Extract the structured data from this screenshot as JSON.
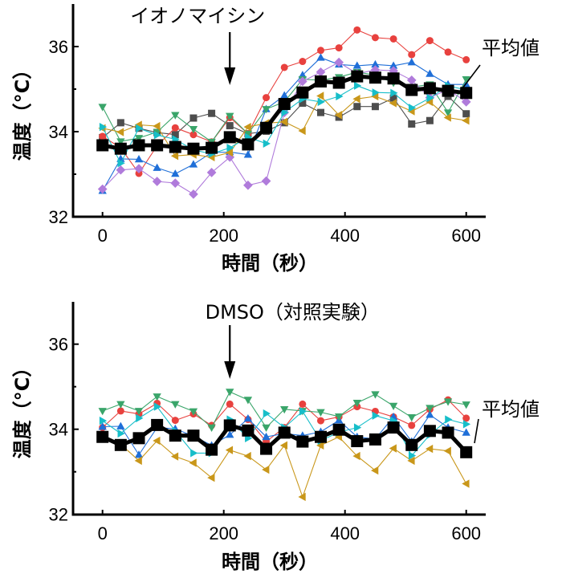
{
  "chart_data": [
    {
      "type": "line",
      "id": "ionomycin",
      "title": "",
      "annotation": "イオノマイシン",
      "annotation_at_x": 210,
      "average_label": "平均値",
      "xlabel": "時間（秒）",
      "ylabel": "温度（°C）",
      "xlim": [
        -30,
        640
      ],
      "ylim": [
        32,
        37
      ],
      "xticks": [
        0,
        200,
        400,
        600
      ],
      "xtick_labels": [
        "0",
        "200",
        "400",
        "600"
      ],
      "yticks": [
        32,
        34,
        36
      ],
      "ytick_labels": [
        "32",
        "34",
        "36"
      ],
      "yminor_ticks": [
        33,
        35
      ],
      "grid": false,
      "x": [
        0,
        30,
        60,
        90,
        120,
        150,
        180,
        210,
        240,
        270,
        300,
        330,
        360,
        390,
        420,
        450,
        480,
        510,
        540,
        570,
        600
      ],
      "series": [
        {
          "name": "gray",
          "marker": "square",
          "color": "#4D4D4D",
          "values": [
            33.86,
            34.21,
            34.08,
            33.98,
            33.93,
            34.32,
            34.43,
            34.14,
            33.95,
            34.01,
            34.21,
            34.67,
            34.45,
            34.34,
            34.59,
            34.59,
            34.79,
            34.18,
            34.26,
            34.83,
            34.42
          ]
        },
        {
          "name": "red",
          "marker": "circle",
          "color": "#E8413E",
          "values": [
            33.89,
            33.62,
            33.02,
            33.67,
            34.09,
            33.93,
            33.76,
            34.33,
            33.95,
            34.8,
            35.51,
            35.65,
            35.91,
            35.97,
            36.39,
            36.21,
            36.18,
            35.81,
            36.14,
            35.87,
            35.69
          ]
        },
        {
          "name": "blue",
          "marker": "triangle-up",
          "color": "#1F6FD8",
          "values": [
            32.61,
            33.36,
            33.35,
            33.15,
            33.01,
            33.23,
            33.51,
            33.52,
            33.46,
            34.53,
            34.85,
            35.33,
            35.74,
            35.58,
            35.55,
            35.58,
            35.55,
            35.63,
            35.36,
            35.11,
            35.11
          ]
        },
        {
          "name": "green",
          "marker": "triangle-down",
          "color": "#3AA56A",
          "values": [
            34.58,
            33.77,
            33.85,
            33.99,
            34.39,
            34.06,
            33.76,
            34.37,
            33.95,
            34.53,
            34.7,
            35.23,
            35.21,
            35.28,
            35.4,
            35.33,
            35.15,
            35.05,
            35.11,
            34.45,
            35.23
          ]
        },
        {
          "name": "purple",
          "marker": "diamond",
          "color": "#B07BDB",
          "values": [
            32.65,
            33.1,
            33.13,
            32.83,
            32.79,
            32.53,
            33.04,
            33.4,
            32.74,
            32.84,
            34.45,
            35.18,
            35.4,
            35.63,
            35.36,
            35.45,
            35.43,
            35.21,
            34.8,
            34.99,
            34.7
          ]
        },
        {
          "name": "gold",
          "marker": "triangle-left",
          "color": "#C9971A",
          "values": [
            34.08,
            33.99,
            34.16,
            34.13,
            33.43,
            33.46,
            33.4,
            33.51,
            34.11,
            34.2,
            34.23,
            34.02,
            34.84,
            34.39,
            34.77,
            34.83,
            34.67,
            34.48,
            34.7,
            34.33,
            34.26
          ]
        },
        {
          "name": "cyan",
          "marker": "triangle-right",
          "color": "#17BEC9",
          "values": [
            34.11,
            33.26,
            34.08,
            33.92,
            33.82,
            33.57,
            33.48,
            33.62,
            33.87,
            33.72,
            34.45,
            34.77,
            34.7,
            34.83,
            35.08,
            34.92,
            34.91,
            34.56,
            34.79,
            35.08,
            34.98
          ]
        },
        {
          "name": "average",
          "marker": "square",
          "color": "#000000",
          "bold": true,
          "values": [
            33.68,
            33.6,
            33.68,
            33.68,
            33.64,
            33.6,
            33.62,
            33.87,
            33.7,
            34.09,
            34.65,
            34.92,
            35.18,
            35.15,
            35.3,
            35.27,
            35.25,
            34.98,
            35.02,
            34.96,
            34.91
          ]
        }
      ]
    },
    {
      "type": "line",
      "id": "dmso",
      "title": "",
      "annotation": "DMSO（対照実験）",
      "annotation_at_x": 210,
      "average_label": "平均値",
      "xlabel": "時間（秒）",
      "ylabel": "温度（°C）",
      "xlim": [
        -30,
        640
      ],
      "ylim": [
        32,
        37
      ],
      "xticks": [
        0,
        200,
        400,
        600
      ],
      "xtick_labels": [
        "0",
        "200",
        "400",
        "600"
      ],
      "yticks": [
        32,
        34,
        36
      ],
      "ytick_labels": [
        "32",
        "34",
        "36"
      ],
      "yminor_ticks": [
        33,
        35
      ],
      "grid": false,
      "x": [
        0,
        30,
        60,
        90,
        120,
        150,
        180,
        210,
        240,
        270,
        300,
        330,
        360,
        390,
        420,
        450,
        480,
        510,
        540,
        570,
        600
      ],
      "series": [
        {
          "name": "red",
          "marker": "circle",
          "color": "#E8413E",
          "values": [
            34.04,
            34.43,
            34.36,
            34.61,
            34.21,
            34.36,
            34.09,
            34.59,
            34.23,
            33.71,
            34.04,
            34.59,
            34.2,
            34.29,
            34.53,
            34.42,
            34.29,
            34.09,
            34.47,
            34.69,
            34.26
          ]
        },
        {
          "name": "blue",
          "marker": "triangle-up",
          "color": "#1F6FD8",
          "values": [
            34.06,
            34.07,
            33.4,
            34.04,
            34.01,
            33.84,
            33.62,
            33.87,
            34.25,
            33.82,
            33.9,
            33.85,
            33.94,
            34.21,
            33.82,
            33.77,
            34.29,
            33.71,
            34.34,
            34.04,
            33.92
          ]
        },
        {
          "name": "green",
          "marker": "triangle-down",
          "color": "#3AA56A",
          "values": [
            34.43,
            34.59,
            34.43,
            34.77,
            34.59,
            34.42,
            34.04,
            34.88,
            34.69,
            34.04,
            34.47,
            34.43,
            34.4,
            34.3,
            34.62,
            34.82,
            34.55,
            34.28,
            34.5,
            34.65,
            34.58
          ]
        },
        {
          "name": "gold",
          "marker": "triangle-left",
          "color": "#C9971A",
          "values": [
            33.8,
            33.65,
            33.26,
            33.73,
            33.36,
            33.21,
            32.86,
            33.51,
            33.37,
            33.05,
            33.62,
            32.41,
            33.62,
            33.82,
            33.37,
            33.03,
            33.55,
            33.26,
            33.54,
            33.49,
            32.72
          ]
        },
        {
          "name": "cyan",
          "marker": "triangle-right",
          "color": "#17BEC9",
          "values": [
            34.2,
            33.9,
            34.26,
            34.53,
            33.96,
            33.44,
            33.44,
            34.23,
            33.79,
            34.37,
            34.04,
            34.42,
            33.73,
            33.93,
            34.04,
            34.32,
            34.2,
            33.38,
            33.87,
            34.23,
            34.12
          ]
        },
        {
          "name": "average",
          "marker": "square",
          "color": "#000000",
          "bold": true,
          "values": [
            33.82,
            33.63,
            33.79,
            34.1,
            33.85,
            33.85,
            33.52,
            34.09,
            33.97,
            33.54,
            33.92,
            33.71,
            33.82,
            33.99,
            33.72,
            33.76,
            34.04,
            33.63,
            33.96,
            33.92,
            33.46
          ]
        }
      ]
    }
  ]
}
